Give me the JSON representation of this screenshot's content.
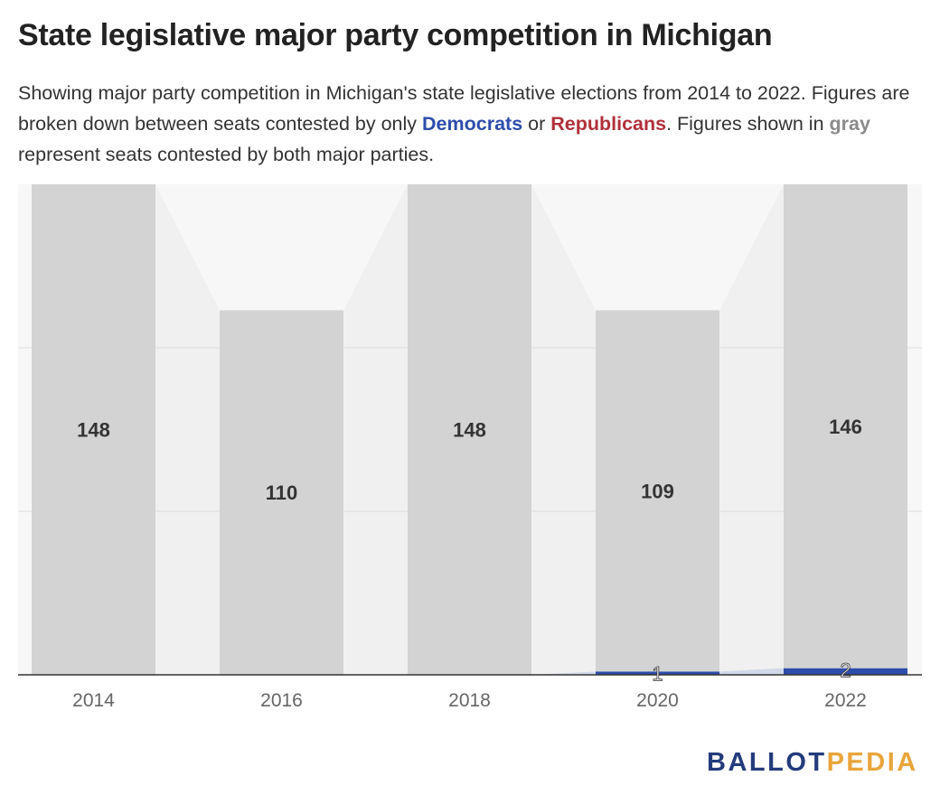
{
  "header": {
    "title": "State legislative major party competition in Michigan",
    "desc_part1": "Showing major party competition in Michigan's state legislative elections from 2014 to 2022. Figures are broken down between seats contested by only ",
    "democrats": "Democrats",
    "or": " or ",
    "republicans": "Republicans",
    "desc_part2": ". Figures shown in ",
    "gray": "gray",
    "desc_part3": " represent seats contested by both major parties."
  },
  "chart_data": {
    "type": "bar",
    "stacked": true,
    "categories": [
      "2014",
      "2016",
      "2018",
      "2020",
      "2022"
    ],
    "series": [
      {
        "name": "Democrats",
        "color": "#2d4dab",
        "values": [
          0,
          0,
          0,
          1,
          2
        ],
        "labels": [
          "",
          "",
          "",
          "1",
          "2"
        ]
      },
      {
        "name": "Republicans",
        "color": "#b0303b",
        "values": [
          0,
          0,
          0,
          0,
          0
        ],
        "labels": [
          "",
          "",
          "",
          "",
          ""
        ]
      },
      {
        "name": "gray",
        "color": "#d3d3d3",
        "values": [
          148,
          110,
          148,
          109,
          146
        ],
        "labels": [
          "148",
          "110",
          "148",
          "109",
          "146"
        ]
      }
    ],
    "ylim": [
      0,
      148
    ],
    "grid": true,
    "connectors": true
  },
  "brand": {
    "part1": "BALLOT",
    "part2": "PEDIA"
  }
}
